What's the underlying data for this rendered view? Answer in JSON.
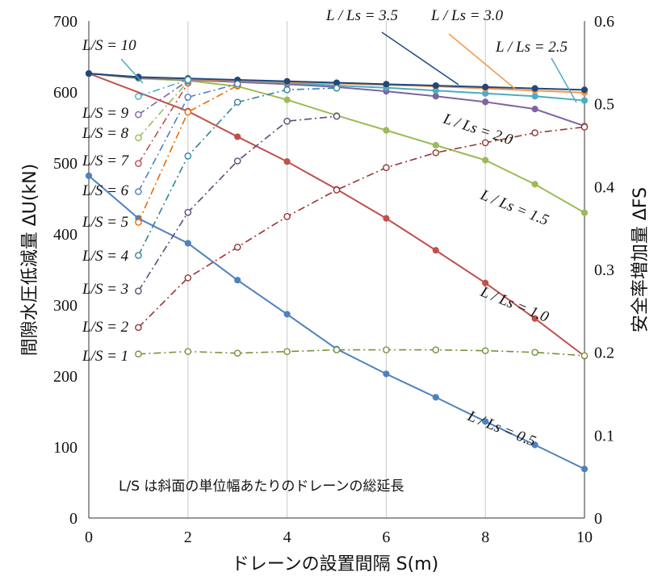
{
  "chart_data": {
    "type": "line",
    "xlabel": "ドレーンの設置間隔 S(m)",
    "ylabel_left": "間隙水圧低減量 ΔU(kN)",
    "ylabel_right": "安全率増加量 ΔFS",
    "xlim": [
      0,
      10
    ],
    "ylim_left": [
      0,
      700
    ],
    "ylim_right": [
      0,
      0.6
    ],
    "x_ticks": [
      "0",
      "2",
      "4",
      "6",
      "8",
      "10"
    ],
    "y_left_ticks": [
      "0",
      "100",
      "200",
      "300",
      "400",
      "500",
      "600",
      "700"
    ],
    "y_right_ticks": [
      "0",
      "0.1",
      "0.2",
      "0.3",
      "0.4",
      "0.5",
      "0.6"
    ],
    "grid": "vertical",
    "note": "L/S は斜面の単位幅あたりのドレーンの総延長",
    "series_ls": [
      {
        "label": "L / Ls = 0.5",
        "color": "#4f81bd",
        "x": [
          0,
          1,
          2,
          3,
          4,
          5,
          6,
          7,
          8,
          9,
          10
        ],
        "y": [
          482,
          422,
          387,
          335,
          287,
          238,
          203,
          170,
          136,
          103,
          69
        ]
      },
      {
        "label": "L / Ls = 1.0",
        "color": "#c0504d",
        "x": [
          0,
          2,
          3,
          4,
          5,
          6,
          7,
          8,
          9,
          10
        ],
        "y": [
          626,
          573,
          537,
          502,
          463,
          422,
          377,
          331,
          281,
          228
        ]
      },
      {
        "label": "L / Ls = 1.5",
        "color": "#9bbb59",
        "x": [
          0,
          1,
          2,
          3,
          4,
          5,
          6,
          7,
          8,
          9,
          10
        ],
        "y": [
          626,
          619,
          616,
          608,
          589,
          567,
          546,
          525,
          504,
          470,
          430
        ]
      },
      {
        "label": "L / Ls = 2.0",
        "color": "#8064a2",
        "x": [
          0,
          1,
          2,
          3,
          4,
          5,
          6,
          7,
          8,
          9,
          10
        ],
        "y": [
          626,
          620,
          617,
          614,
          611,
          607,
          601,
          594,
          586,
          576,
          552
        ]
      },
      {
        "label": "L / Ls = 2.5",
        "color": "#4bacc6",
        "x": [
          0,
          1,
          2,
          3,
          4,
          5,
          6,
          7,
          8,
          9,
          10
        ],
        "y": [
          626,
          621,
          618,
          616,
          613,
          609,
          606,
          602,
          598,
          594,
          588
        ]
      },
      {
        "label": "L / Ls = 3.0",
        "color": "#f79646",
        "x": [
          0,
          1,
          2,
          3,
          4,
          5,
          6,
          7,
          8,
          9,
          10
        ],
        "y": [
          626,
          621,
          618,
          616,
          614,
          612,
          610,
          608,
          605,
          602,
          599
        ]
      },
      {
        "label": "L / Ls = 3.5",
        "color": "#1f497d",
        "x": [
          0,
          1,
          2,
          3,
          4,
          5,
          6,
          7,
          8,
          9,
          10
        ],
        "y": [
          626,
          621,
          619,
          617,
          615,
          613,
          611,
          609,
          607,
          605,
          603
        ]
      }
    ],
    "series_lsratio": [
      {
        "label": "L/S = 1",
        "color": "#76923c",
        "x": [
          1,
          2,
          3,
          4,
          5,
          6,
          7,
          8,
          9,
          10
        ],
        "y": [
          0.198,
          0.201,
          0.199,
          0.201,
          0.203,
          0.203,
          0.203,
          0.202,
          0.2,
          0.196
        ]
      },
      {
        "label": "L/S = 2",
        "color": "#953735",
        "x": [
          1,
          2,
          3,
          4,
          5,
          6,
          7,
          8,
          9,
          10
        ],
        "y": [
          0.23,
          0.29,
          0.327,
          0.364,
          0.396,
          0.423,
          0.441,
          0.453,
          0.465,
          0.472
        ]
      },
      {
        "label": "L/S = 3",
        "color": "#604a7b",
        "x": [
          1,
          2,
          3,
          4,
          5
        ],
        "y": [
          0.274,
          0.369,
          0.431,
          0.479,
          0.485
        ]
      },
      {
        "label": "L/S = 4",
        "color": "#31859c",
        "x": [
          1,
          2,
          3,
          4,
          5
        ],
        "y": [
          0.317,
          0.437,
          0.502,
          0.517,
          0.519
        ]
      },
      {
        "label": "L/S = 5",
        "color": "#e46c0a",
        "x": [
          1,
          2,
          3
        ],
        "y": [
          0.357,
          0.49,
          0.522
        ]
      },
      {
        "label": "L/S = 6",
        "color": "#4f81bd",
        "x": [
          1,
          2,
          3
        ],
        "y": [
          0.394,
          0.508,
          0.524
        ]
      },
      {
        "label": "L/S = 7",
        "color": "#c0504d",
        "x": [
          1,
          2
        ],
        "y": [
          0.428,
          0.525
        ]
      },
      {
        "label": "L/S = 8",
        "color": "#9bbb59",
        "x": [
          1,
          2
        ],
        "y": [
          0.459,
          0.527
        ]
      },
      {
        "label": "L/S = 9",
        "color": "#8064a2",
        "x": [
          1,
          2
        ],
        "y": [
          0.487,
          0.528
        ]
      },
      {
        "label": "L/S = 10",
        "color": "#4bacc6",
        "x": [
          1,
          2
        ],
        "y": [
          0.509,
          0.529
        ]
      }
    ]
  }
}
